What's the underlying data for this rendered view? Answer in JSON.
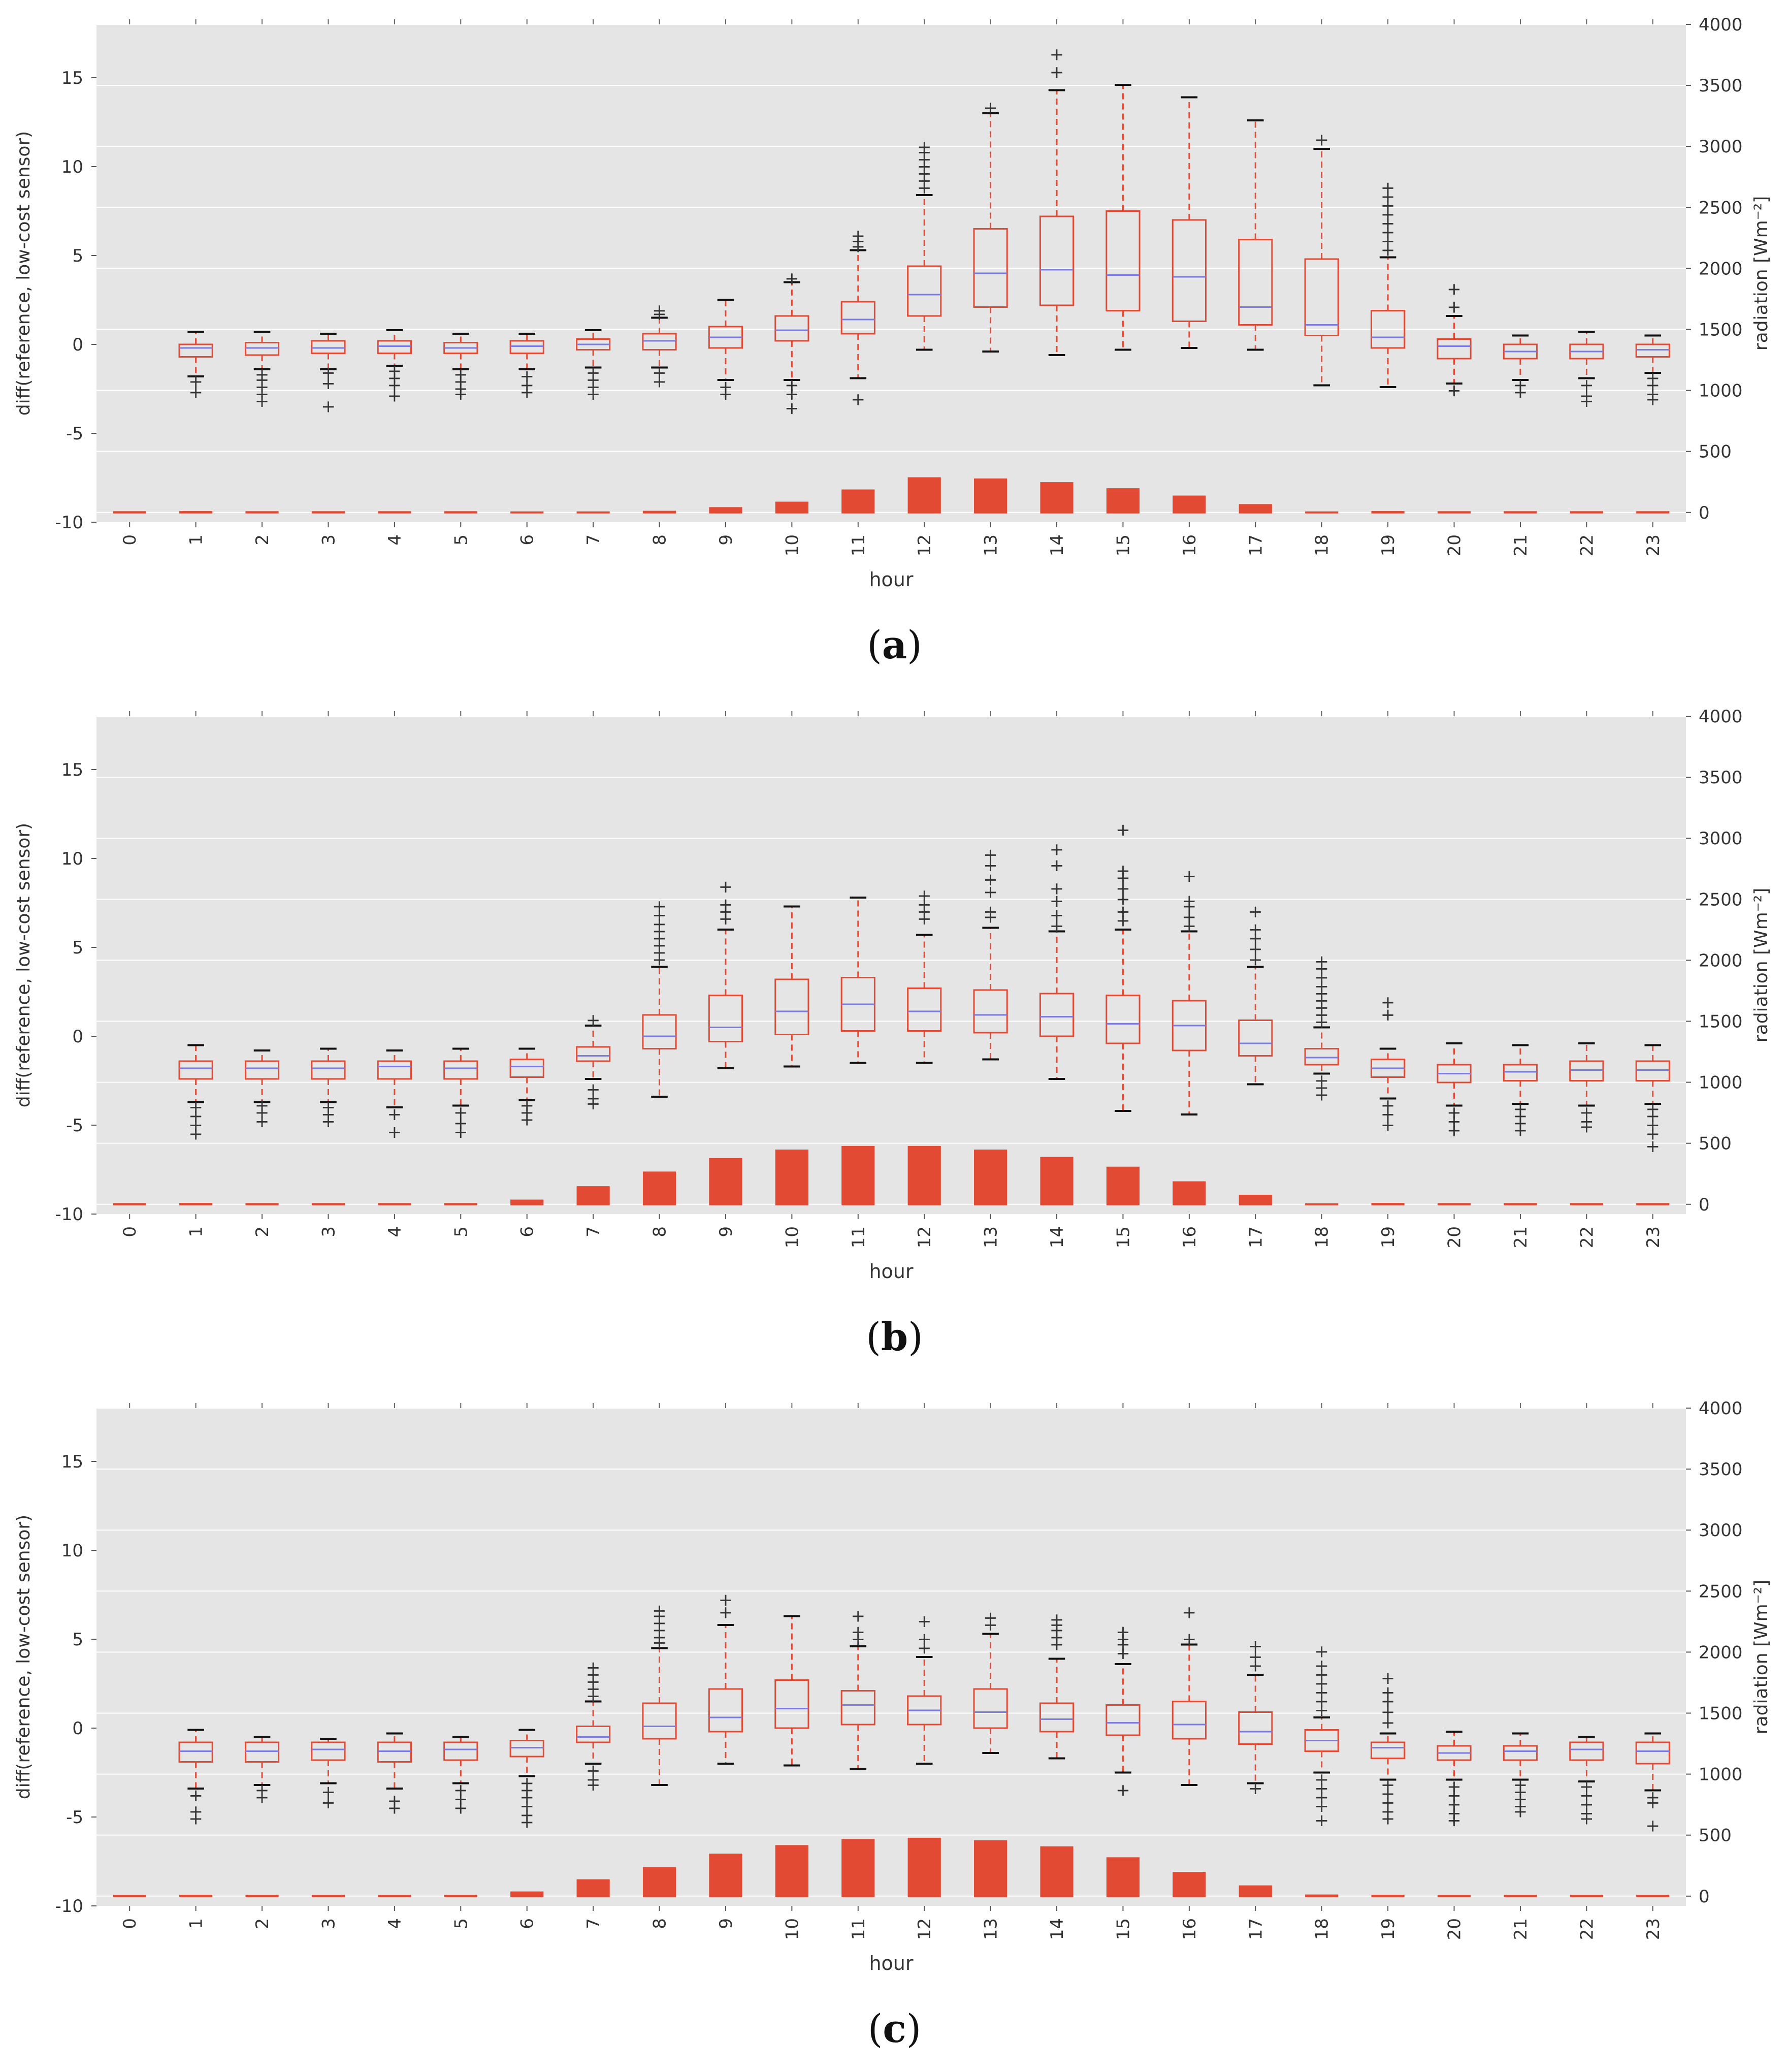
{
  "chart_data": [
    {
      "type": "boxplot",
      "caption": "a",
      "xlabel": "hour",
      "ylabel": "diff(reference, low-cost sensor)",
      "y2label": "radiation [Wm⁻²]",
      "ylim": [
        -10,
        18
      ],
      "y2lim": [
        -80,
        4000
      ],
      "yticks": [
        -10,
        -5,
        0,
        5,
        10,
        15
      ],
      "y2ticks": [
        0,
        500,
        1000,
        1500,
        2000,
        2500,
        3000,
        3500,
        4000
      ],
      "categories": [
        "0",
        "1",
        "2",
        "3",
        "4",
        "5",
        "6",
        "7",
        "8",
        "9",
        "10",
        "11",
        "12",
        "13",
        "14",
        "15",
        "16",
        "17",
        "18",
        "19",
        "20",
        "21",
        "22",
        "23"
      ],
      "radiation": [
        2,
        3,
        2,
        2,
        2,
        2,
        0,
        0,
        5,
        35,
        80,
        180,
        280,
        270,
        240,
        190,
        130,
        60,
        0,
        3,
        2,
        2,
        2,
        2
      ],
      "boxes": [
        null,
        {
          "q1": -0.7,
          "med": -0.2,
          "q3": 0.0,
          "wlo": -1.8,
          "whi": 0.7,
          "out": [
            -2.1,
            -2.7
          ]
        },
        {
          "q1": -0.6,
          "med": -0.2,
          "q3": 0.1,
          "wlo": -1.4,
          "whi": 0.7,
          "out": [
            -1.7,
            -2.0,
            -2.4,
            -2.8,
            -3.2
          ]
        },
        {
          "q1": -0.5,
          "med": -0.2,
          "q3": 0.2,
          "wlo": -1.4,
          "whi": 0.6,
          "out": [
            -1.6,
            -2.2,
            -3.5
          ]
        },
        {
          "q1": -0.5,
          "med": -0.1,
          "q3": 0.2,
          "wlo": -1.2,
          "whi": 0.8,
          "out": [
            -1.5,
            -1.9,
            -2.3,
            -2.9
          ]
        },
        {
          "q1": -0.5,
          "med": -0.2,
          "q3": 0.1,
          "wlo": -1.4,
          "whi": 0.6,
          "out": [
            -1.7,
            -2.1,
            -2.5,
            -2.8
          ]
        },
        {
          "q1": -0.5,
          "med": -0.1,
          "q3": 0.2,
          "wlo": -1.4,
          "whi": 0.6,
          "out": [
            -1.8,
            -2.3,
            -2.7
          ]
        },
        {
          "q1": -0.3,
          "med": 0.0,
          "q3": 0.3,
          "wlo": -1.3,
          "whi": 0.8,
          "out": [
            -1.6,
            -2.0,
            -2.4,
            -2.8
          ]
        },
        {
          "q1": -0.3,
          "med": 0.2,
          "q3": 0.6,
          "wlo": -1.3,
          "whi": 1.5,
          "out": [
            -1.6,
            -2.1,
            1.7,
            1.9
          ]
        },
        {
          "q1": -0.2,
          "med": 0.4,
          "q3": 1.0,
          "wlo": -2.0,
          "whi": 2.5,
          "out": [
            -2.4,
            -2.8
          ]
        },
        {
          "q1": 0.2,
          "med": 0.8,
          "q3": 1.6,
          "wlo": -2.0,
          "whi": 3.5,
          "out": [
            -2.3,
            -2.8,
            -3.6,
            3.7
          ]
        },
        {
          "q1": 0.6,
          "med": 1.4,
          "q3": 2.4,
          "wlo": -1.9,
          "whi": 5.3,
          "out": [
            -3.1,
            5.5,
            5.8,
            6.1
          ]
        },
        {
          "q1": 1.6,
          "med": 2.8,
          "q3": 4.4,
          "wlo": -0.3,
          "whi": 8.4,
          "out": [
            8.8,
            9.2,
            9.6,
            10.0,
            10.4,
            10.8,
            11.1
          ]
        },
        {
          "q1": 2.1,
          "med": 4.0,
          "q3": 6.5,
          "wlo": -0.4,
          "whi": 13.0,
          "out": [
            13.3
          ]
        },
        {
          "q1": 2.2,
          "med": 4.2,
          "q3": 7.2,
          "wlo": -0.6,
          "whi": 14.3,
          "out": [
            15.3,
            16.3
          ]
        },
        {
          "q1": 1.9,
          "med": 3.9,
          "q3": 7.5,
          "wlo": -0.3,
          "whi": 14.6,
          "out": []
        },
        {
          "q1": 1.3,
          "med": 3.8,
          "q3": 7.0,
          "wlo": -0.2,
          "whi": 13.9,
          "out": []
        },
        {
          "q1": 1.1,
          "med": 2.1,
          "q3": 5.9,
          "wlo": -0.3,
          "whi": 12.6,
          "out": []
        },
        {
          "q1": 0.5,
          "med": 1.1,
          "q3": 4.8,
          "wlo": -2.3,
          "whi": 11.0,
          "out": [
            11.5
          ]
        },
        {
          "q1": -0.2,
          "med": 0.4,
          "q3": 1.9,
          "wlo": -2.4,
          "whi": 4.9,
          "out": [
            5.3,
            5.8,
            6.3,
            6.8,
            7.3,
            7.8,
            8.3,
            8.8
          ]
        },
        {
          "q1": -0.8,
          "med": -0.1,
          "q3": 0.3,
          "wlo": -2.2,
          "whi": 1.6,
          "out": [
            -2.6,
            2.1,
            3.1
          ]
        },
        {
          "q1": -0.8,
          "med": -0.4,
          "q3": 0.0,
          "wlo": -2.0,
          "whi": 0.5,
          "out": [
            -2.3,
            -2.7
          ]
        },
        {
          "q1": -0.8,
          "med": -0.4,
          "q3": 0.0,
          "wlo": -1.9,
          "whi": 0.7,
          "out": [
            -2.3,
            -2.9,
            -3.2
          ]
        },
        {
          "q1": -0.7,
          "med": -0.3,
          "q3": 0.0,
          "wlo": -1.6,
          "whi": 0.5,
          "out": [
            -1.9,
            -2.3,
            -2.8,
            -3.1
          ]
        }
      ]
    },
    {
      "type": "boxplot",
      "caption": "b",
      "xlabel": "hour",
      "ylabel": "diff(reference, low-cost sensor)",
      "y2label": "radiation [Wm⁻²]",
      "ylim": [
        -10,
        18
      ],
      "y2lim": [
        -80,
        4000
      ],
      "yticks": [
        -10,
        -5,
        0,
        5,
        10,
        15
      ],
      "y2ticks": [
        0,
        500,
        1000,
        1500,
        2000,
        2500,
        3000,
        3500,
        4000
      ],
      "categories": [
        "0",
        "1",
        "2",
        "3",
        "4",
        "5",
        "6",
        "7",
        "8",
        "9",
        "10",
        "11",
        "12",
        "13",
        "14",
        "15",
        "16",
        "17",
        "18",
        "19",
        "20",
        "21",
        "22",
        "23"
      ],
      "radiation": [
        2,
        3,
        2,
        2,
        2,
        2,
        30,
        140,
        260,
        370,
        440,
        470,
        470,
        440,
        380,
        300,
        180,
        70,
        0,
        3,
        2,
        2,
        2,
        2
      ],
      "boxes": [
        null,
        {
          "q1": -2.4,
          "med": -1.8,
          "q3": -1.4,
          "wlo": -3.7,
          "whi": -0.5,
          "out": [
            -4.0,
            -4.5,
            -5.0,
            -5.5
          ]
        },
        {
          "q1": -2.4,
          "med": -1.8,
          "q3": -1.4,
          "wlo": -3.7,
          "whi": -0.8,
          "out": [
            -3.9,
            -4.3,
            -4.8
          ]
        },
        {
          "q1": -2.4,
          "med": -1.8,
          "q3": -1.4,
          "wlo": -3.7,
          "whi": -0.7,
          "out": [
            -4.0,
            -4.4,
            -4.8
          ]
        },
        {
          "q1": -2.4,
          "med": -1.7,
          "q3": -1.4,
          "wlo": -4.0,
          "whi": -0.8,
          "out": [
            -4.4,
            -5.4
          ]
        },
        {
          "q1": -2.4,
          "med": -1.8,
          "q3": -1.4,
          "wlo": -3.9,
          "whi": -0.7,
          "out": [
            -4.3,
            -4.9,
            -5.4
          ]
        },
        {
          "q1": -2.3,
          "med": -1.7,
          "q3": -1.3,
          "wlo": -3.6,
          "whi": -0.7,
          "out": [
            -3.9,
            -4.3,
            -4.7
          ]
        },
        {
          "q1": -1.4,
          "med": -1.1,
          "q3": -0.6,
          "wlo": -2.4,
          "whi": 0.6,
          "out": [
            -3.0,
            -3.5,
            -3.8,
            0.9
          ]
        },
        {
          "q1": -0.7,
          "med": 0.0,
          "q3": 1.2,
          "wlo": -3.4,
          "whi": 3.9,
          "out": [
            4.3,
            4.7,
            5.1,
            5.5,
            5.9,
            6.3,
            6.8,
            7.3
          ]
        },
        {
          "q1": -0.3,
          "med": 0.5,
          "q3": 2.3,
          "wlo": -1.8,
          "whi": 6.0,
          "out": [
            6.6,
            7.0,
            7.4,
            8.4
          ]
        },
        {
          "q1": 0.1,
          "med": 1.4,
          "q3": 3.2,
          "wlo": -1.7,
          "whi": 7.3,
          "out": []
        },
        {
          "q1": 0.3,
          "med": 1.8,
          "q3": 3.3,
          "wlo": -1.5,
          "whi": 7.8,
          "out": []
        },
        {
          "q1": 0.3,
          "med": 1.4,
          "q3": 2.7,
          "wlo": -1.5,
          "whi": 5.7,
          "out": [
            6.6,
            7.0,
            7.4,
            7.9
          ]
        },
        {
          "q1": 0.2,
          "med": 1.2,
          "q3": 2.6,
          "wlo": -1.3,
          "whi": 6.1,
          "out": [
            6.7,
            7.0,
            8.1,
            8.8,
            9.6,
            10.2
          ]
        },
        {
          "q1": 0.0,
          "med": 1.1,
          "q3": 2.4,
          "wlo": -2.4,
          "whi": 5.9,
          "out": [
            6.2,
            6.8,
            7.6,
            8.3,
            9.6,
            10.5
          ]
        },
        {
          "q1": -0.4,
          "med": 0.7,
          "q3": 2.3,
          "wlo": -4.2,
          "whi": 6.0,
          "out": [
            6.5,
            7.0,
            7.7,
            8.3,
            8.9,
            9.3,
            11.6
          ]
        },
        {
          "q1": -0.8,
          "med": 0.6,
          "q3": 2.0,
          "wlo": -4.4,
          "whi": 5.9,
          "out": [
            6.2,
            6.7,
            7.3,
            7.6,
            9.0
          ]
        },
        {
          "q1": -1.1,
          "med": -0.4,
          "q3": 0.9,
          "wlo": -2.7,
          "whi": 3.9,
          "out": [
            4.3,
            4.9,
            5.5,
            6.0,
            7.0
          ]
        },
        {
          "q1": -1.6,
          "med": -1.2,
          "q3": -0.7,
          "wlo": -2.1,
          "whi": 0.5,
          "out": [
            -2.5,
            -2.9,
            -3.3,
            0.8,
            1.2,
            1.6,
            2.0,
            2.4,
            2.8,
            3.3,
            3.8,
            4.2
          ]
        },
        {
          "q1": -2.3,
          "med": -1.8,
          "q3": -1.3,
          "wlo": -3.5,
          "whi": -0.7,
          "out": [
            -3.9,
            -4.4,
            -5.0,
            1.2,
            1.9
          ]
        },
        {
          "q1": -2.6,
          "med": -2.1,
          "q3": -1.6,
          "wlo": -3.9,
          "whi": -0.4,
          "out": [
            -4.3,
            -4.8,
            -5.3
          ]
        },
        {
          "q1": -2.5,
          "med": -2.0,
          "q3": -1.6,
          "wlo": -3.8,
          "whi": -0.5,
          "out": [
            -4.1,
            -4.5,
            -4.9,
            -5.3
          ]
        },
        {
          "q1": -2.5,
          "med": -1.9,
          "q3": -1.4,
          "wlo": -3.9,
          "whi": -0.4,
          "out": [
            -4.3,
            -4.8,
            -5.1
          ]
        },
        {
          "q1": -2.5,
          "med": -1.9,
          "q3": -1.4,
          "wlo": -3.8,
          "whi": -0.5,
          "out": [
            -4.1,
            -4.5,
            -5.0,
            -5.5,
            -6.2
          ]
        }
      ]
    },
    {
      "type": "boxplot",
      "caption": "c",
      "xlabel": "hour",
      "ylabel": "diff(reference, low-cost sensor)",
      "y2label": "radiation [Wm⁻²]",
      "ylim": [
        -10,
        18
      ],
      "y2lim": [
        -80,
        4000
      ],
      "yticks": [
        -10,
        -5,
        0,
        5,
        10,
        15
      ],
      "y2ticks": [
        0,
        500,
        1000,
        1500,
        2000,
        2500,
        3000,
        3500,
        4000
      ],
      "categories": [
        "0",
        "1",
        "2",
        "3",
        "4",
        "5",
        "6",
        "7",
        "8",
        "9",
        "10",
        "11",
        "12",
        "13",
        "14",
        "15",
        "16",
        "17",
        "18",
        "19",
        "20",
        "21",
        "22",
        "23"
      ],
      "radiation": [
        2,
        3,
        2,
        2,
        2,
        2,
        30,
        130,
        230,
        340,
        410,
        460,
        470,
        450,
        400,
        310,
        190,
        80,
        5,
        3,
        2,
        2,
        2,
        2
      ],
      "boxes": [
        null,
        {
          "q1": -1.9,
          "med": -1.3,
          "q3": -0.8,
          "wlo": -3.4,
          "whi": -0.1,
          "out": [
            -3.8,
            -4.7,
            -5.1
          ]
        },
        {
          "q1": -1.9,
          "med": -1.3,
          "q3": -0.8,
          "wlo": -3.2,
          "whi": -0.5,
          "out": [
            -3.5,
            -3.9
          ]
        },
        {
          "q1": -1.8,
          "med": -1.2,
          "q3": -0.8,
          "wlo": -3.1,
          "whi": -0.6,
          "out": [
            -3.6,
            -4.2
          ]
        },
        {
          "q1": -1.9,
          "med": -1.3,
          "q3": -0.8,
          "wlo": -3.4,
          "whi": -0.3,
          "out": [
            -4.1,
            -4.5
          ]
        },
        {
          "q1": -1.8,
          "med": -1.2,
          "q3": -0.8,
          "wlo": -3.1,
          "whi": -0.5,
          "out": [
            -3.5,
            -4.0,
            -4.5
          ]
        },
        {
          "q1": -1.6,
          "med": -1.1,
          "q3": -0.7,
          "wlo": -2.7,
          "whi": -0.1,
          "out": [
            -3.1,
            -3.5,
            -3.9,
            -4.4,
            -4.9,
            -5.3
          ]
        },
        {
          "q1": -0.8,
          "med": -0.5,
          "q3": 0.1,
          "wlo": -2.0,
          "whi": 1.5,
          "out": [
            -2.4,
            -2.9,
            -3.2,
            1.8,
            2.2,
            2.6,
            3.0,
            3.4
          ]
        },
        {
          "q1": -0.6,
          "med": 0.1,
          "q3": 1.4,
          "wlo": -3.2,
          "whi": 4.5,
          "out": [
            4.8,
            5.1,
            5.5,
            5.9,
            6.3,
            6.6
          ]
        },
        {
          "q1": -0.2,
          "med": 0.6,
          "q3": 2.2,
          "wlo": -2.0,
          "whi": 5.8,
          "out": [
            6.5,
            7.2
          ]
        },
        {
          "q1": 0.0,
          "med": 1.1,
          "q3": 2.7,
          "wlo": -2.1,
          "whi": 6.3,
          "out": []
        },
        {
          "q1": 0.2,
          "med": 1.3,
          "q3": 2.1,
          "wlo": -2.3,
          "whi": 4.6,
          "out": [
            5.0,
            5.4,
            6.3
          ]
        },
        {
          "q1": 0.2,
          "med": 1.0,
          "q3": 1.8,
          "wlo": -2.0,
          "whi": 4.0,
          "out": [
            4.5,
            5.0,
            6.0
          ]
        },
        {
          "q1": 0.0,
          "med": 0.9,
          "q3": 2.2,
          "wlo": -1.4,
          "whi": 5.3,
          "out": [
            5.8,
            6.2
          ]
        },
        {
          "q1": -0.2,
          "med": 0.5,
          "q3": 1.4,
          "wlo": -1.7,
          "whi": 3.9,
          "out": [
            4.7,
            5.1,
            5.5,
            5.8,
            6.1
          ]
        },
        {
          "q1": -0.4,
          "med": 0.3,
          "q3": 1.3,
          "wlo": -2.5,
          "whi": 3.6,
          "out": [
            -3.5,
            4.2,
            4.7,
            5.0,
            5.4
          ]
        },
        {
          "q1": -0.6,
          "med": 0.2,
          "q3": 1.5,
          "wlo": -3.2,
          "whi": 4.7,
          "out": [
            5.0,
            6.5
          ]
        },
        {
          "q1": -0.9,
          "med": -0.2,
          "q3": 0.9,
          "wlo": -3.1,
          "whi": 3.0,
          "out": [
            -3.4,
            3.5,
            4.0,
            4.6
          ]
        },
        {
          "q1": -1.3,
          "med": -0.7,
          "q3": -0.1,
          "wlo": -2.5,
          "whi": 0.6,
          "out": [
            -2.9,
            -3.4,
            -3.9,
            -4.4,
            -5.2,
            1.0,
            1.5,
            2.0,
            2.5,
            3.0,
            3.5,
            4.3
          ]
        },
        {
          "q1": -1.7,
          "med": -1.1,
          "q3": -0.8,
          "wlo": -2.9,
          "whi": -0.3,
          "out": [
            -3.2,
            -3.7,
            -4.2,
            -4.7,
            -5.1,
            0.3,
            0.9,
            1.5,
            2.0,
            2.8
          ]
        },
        {
          "q1": -1.8,
          "med": -1.4,
          "q3": -1.0,
          "wlo": -2.9,
          "whi": -0.2,
          "out": [
            -3.3,
            -3.8,
            -4.3,
            -4.8,
            -5.2
          ]
        },
        {
          "q1": -1.8,
          "med": -1.3,
          "q3": -1.0,
          "wlo": -2.9,
          "whi": -0.3,
          "out": [
            -3.2,
            -3.6,
            -4.0,
            -4.4,
            -4.7
          ]
        },
        {
          "q1": -1.8,
          "med": -1.2,
          "q3": -0.8,
          "wlo": -3.0,
          "whi": -0.5,
          "out": [
            -3.3,
            -3.8,
            -4.3,
            -4.8,
            -5.1
          ]
        },
        {
          "q1": -2.0,
          "med": -1.3,
          "q3": -0.8,
          "wlo": -3.5,
          "whi": -0.3,
          "out": [
            -3.9,
            -4.2,
            -5.5
          ]
        }
      ]
    }
  ]
}
